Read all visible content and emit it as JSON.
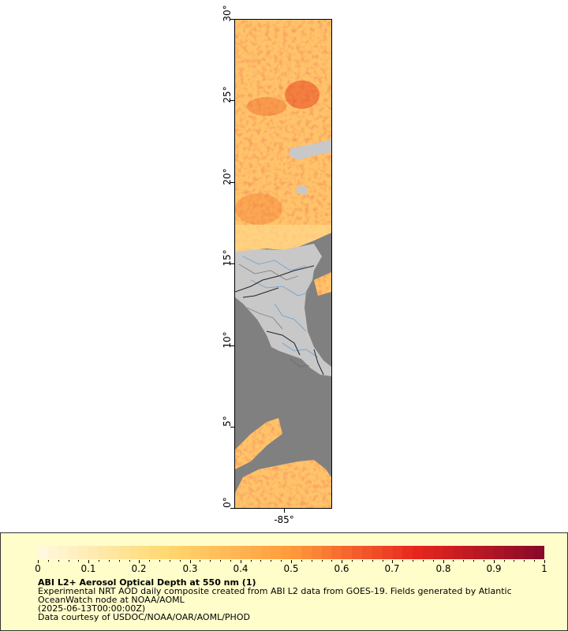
{
  "map": {
    "lat_labels": [
      "0°",
      "5°",
      "10°",
      "15°",
      "20°",
      "25°",
      "30°"
    ],
    "lon_labels": [
      "-85°"
    ],
    "colors": {
      "no_data_ocean": "#808080",
      "land": "#c8c8c8",
      "borders": "#222222",
      "rivers": "#6a9fd0"
    }
  },
  "legend": {
    "scale_labels": [
      "0",
      "0.1",
      "0.2",
      "0.3",
      "0.4",
      "0.5",
      "0.6",
      "0.7",
      "0.8",
      "0.9",
      "1"
    ],
    "scale_min": 0,
    "scale_max": 1,
    "colormap_stops": [
      "#fff8dc",
      "#ffd870",
      "#ff9b3b",
      "#e8271e",
      "#8a0a28"
    ],
    "title": "ABI L2+ Aerosol Optical Depth at 550 nm (1)",
    "line1": "Experimental NRT AOD daily composite created from ABI L2 data from GOES-19. Fields generated by Atlantic",
    "line2": "OceanWatch node at NOAA/AOML",
    "line3": "(2025-06-13T00:00:00Z)",
    "line4": "Data courtesy of USDOC/NOAA/OAR/AOML/PHOD"
  }
}
